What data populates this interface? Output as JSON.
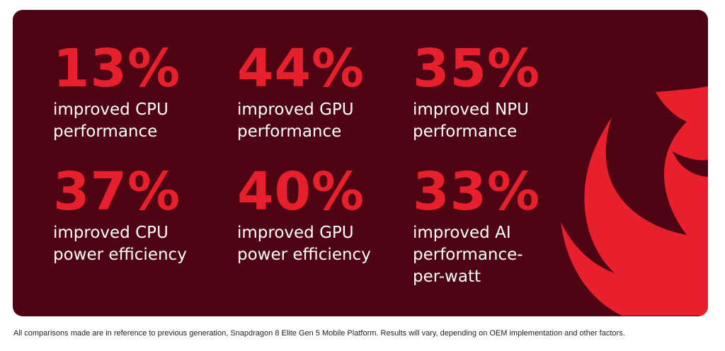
{
  "brand": {
    "logo_icon": "snapdragon-flame-logo",
    "background_color": "#4e0412",
    "accent_color": "#e8202e"
  },
  "stats": [
    {
      "percent": "13%",
      "line1": "improved CPU",
      "line2": "performance",
      "line3": ""
    },
    {
      "percent": "44%",
      "line1": "improved GPU",
      "line2": "performance",
      "line3": ""
    },
    {
      "percent": "35%",
      "line1": "improved NPU",
      "line2": "performance",
      "line3": ""
    },
    {
      "percent": "37%",
      "line1": "improved CPU",
      "line2": "power efficiency",
      "line3": ""
    },
    {
      "percent": "40%",
      "line1": "improved GPU",
      "line2": "power efficiency",
      "line3": ""
    },
    {
      "percent": "33%",
      "line1": "improved AI",
      "line2": "performance-",
      "line3": "per-watt"
    }
  ],
  "footnote": "All comparisons made are in reference to previous generation, Snapdragon 8 Elite Gen 5 Mobile Platform. Results will vary, depending on OEM implementation and other factors."
}
